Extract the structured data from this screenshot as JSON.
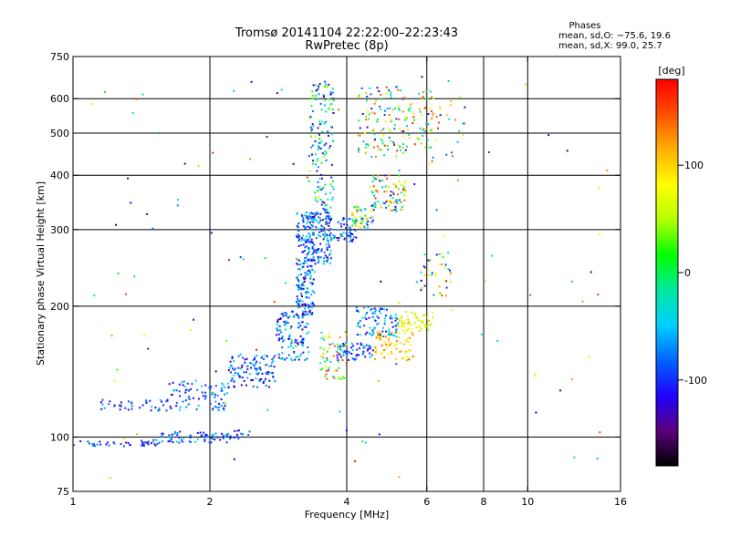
{
  "chart_data": {
    "type": "scatter",
    "title": "Tromsø 20141104 22:22:00–22:23:43",
    "subtitle": "RwPretec (8p)",
    "xlabel": "Frequency [MHz]",
    "ylabel": "Stationary phase Virtual Height [km]",
    "x_scale": "log",
    "y_scale": "log",
    "xlim": [
      1,
      16
    ],
    "ylim": [
      75,
      750
    ],
    "x_ticks": [
      1,
      2,
      4,
      6,
      8,
      10,
      16
    ],
    "y_ticks": [
      75,
      100,
      200,
      300,
      400,
      500,
      600,
      750
    ],
    "x_gridlines": [
      2,
      4,
      6,
      8,
      10
    ],
    "y_gridlines": [
      100,
      200,
      300,
      400,
      500,
      600
    ],
    "grid": true,
    "legend": {
      "heading": "Phases",
      "line1": "mean, sd,O: −75.6, 19.6",
      "line2": "mean, sd,X:  99.0, 25.7"
    },
    "colorbar": {
      "label": "[deg]",
      "ticks": [
        100,
        0,
        -100
      ],
      "range": [
        -180,
        180
      ],
      "colors": [
        "#000000",
        "#5a007a",
        "#2000ff",
        "#0064ff",
        "#00d0ff",
        "#00e8a0",
        "#00ff00",
        "#b4ff00",
        "#ffff00",
        "#ffb000",
        "#ff5000",
        "#ff0000"
      ]
    },
    "series": [
      {
        "clusters": [
          {
            "fmin": 1.0,
            "fmax": 1.55,
            "hmin": 95,
            "hmax": 98,
            "n": 40,
            "pmin": -140,
            "pmax": -60
          },
          {
            "fmin": 1.5,
            "fmax": 2.2,
            "hmin": 97,
            "hmax": 103,
            "n": 70,
            "pmin": -140,
            "pmax": -40
          },
          {
            "fmin": 2.2,
            "fmax": 2.45,
            "hmin": 99,
            "hmax": 104,
            "n": 15,
            "pmin": -130,
            "pmax": -60
          },
          {
            "fmin": 1.15,
            "fmax": 1.6,
            "hmin": 115,
            "hmax": 122,
            "n": 35,
            "pmin": -140,
            "pmax": -50
          },
          {
            "fmin": 1.6,
            "fmax": 2.2,
            "hmin": 115,
            "hmax": 135,
            "n": 90,
            "pmin": -140,
            "pmax": -30
          },
          {
            "fmin": 2.2,
            "fmax": 2.8,
            "hmin": 130,
            "hmax": 155,
            "n": 110,
            "pmin": -140,
            "pmax": -30
          },
          {
            "fmin": 2.8,
            "fmax": 3.3,
            "hmin": 150,
            "hmax": 195,
            "n": 120,
            "pmin": -140,
            "pmax": -20
          },
          {
            "fmin": 3.1,
            "fmax": 3.4,
            "hmin": 190,
            "hmax": 330,
            "n": 230,
            "pmin": -140,
            "pmax": -20
          },
          {
            "fmin": 3.35,
            "fmax": 3.7,
            "hmin": 250,
            "hmax": 330,
            "n": 120,
            "pmin": -140,
            "pmax": -30
          },
          {
            "fmin": 3.3,
            "fmax": 3.75,
            "hmin": 330,
            "hmax": 660,
            "n": 150,
            "pmin": -140,
            "pmax": 60
          },
          {
            "fmin": 3.65,
            "fmax": 4.2,
            "hmin": 280,
            "hmax": 320,
            "n": 60,
            "pmin": -140,
            "pmax": -40
          },
          {
            "fmin": 4.1,
            "fmax": 4.6,
            "hmin": 300,
            "hmax": 340,
            "n": 60,
            "pmin": -130,
            "pmax": 120
          },
          {
            "fmin": 4.5,
            "fmax": 5.4,
            "hmin": 330,
            "hmax": 400,
            "n": 90,
            "pmin": -120,
            "pmax": 160
          },
          {
            "fmin": 4.2,
            "fmax": 5.4,
            "hmin": 440,
            "hmax": 640,
            "n": 110,
            "pmin": -130,
            "pmax": 170
          },
          {
            "fmin": 5.2,
            "fmax": 6.2,
            "hmin": 460,
            "hmax": 640,
            "n": 60,
            "pmin": -60,
            "pmax": 170
          },
          {
            "fmin": 3.5,
            "fmax": 4.0,
            "hmin": 135,
            "hmax": 175,
            "n": 60,
            "pmin": -60,
            "pmax": 170
          },
          {
            "fmin": 3.8,
            "fmax": 4.6,
            "hmin": 150,
            "hmax": 165,
            "n": 60,
            "pmin": -130,
            "pmax": -40
          },
          {
            "fmin": 4.2,
            "fmax": 5.2,
            "hmin": 170,
            "hmax": 200,
            "n": 90,
            "pmin": -130,
            "pmax": -20
          },
          {
            "fmin": 4.6,
            "fmax": 5.6,
            "hmin": 150,
            "hmax": 175,
            "n": 70,
            "pmin": 60,
            "pmax": 140
          },
          {
            "fmin": 5.2,
            "fmax": 6.2,
            "hmin": 175,
            "hmax": 195,
            "n": 60,
            "pmin": 40,
            "pmax": 110
          },
          {
            "fmin": 5.8,
            "fmax": 6.8,
            "hmin": 210,
            "hmax": 270,
            "n": 40,
            "pmin": -150,
            "pmax": 150
          },
          {
            "fmin": 6.0,
            "fmax": 7.3,
            "hmin": 410,
            "hmax": 620,
            "n": 30,
            "pmin": -130,
            "pmax": 170
          },
          {
            "fmin": 1.1,
            "fmax": 15.0,
            "hmin": 80,
            "hmax": 680,
            "n": 110,
            "pmin": -170,
            "pmax": 175
          }
        ]
      }
    ]
  }
}
